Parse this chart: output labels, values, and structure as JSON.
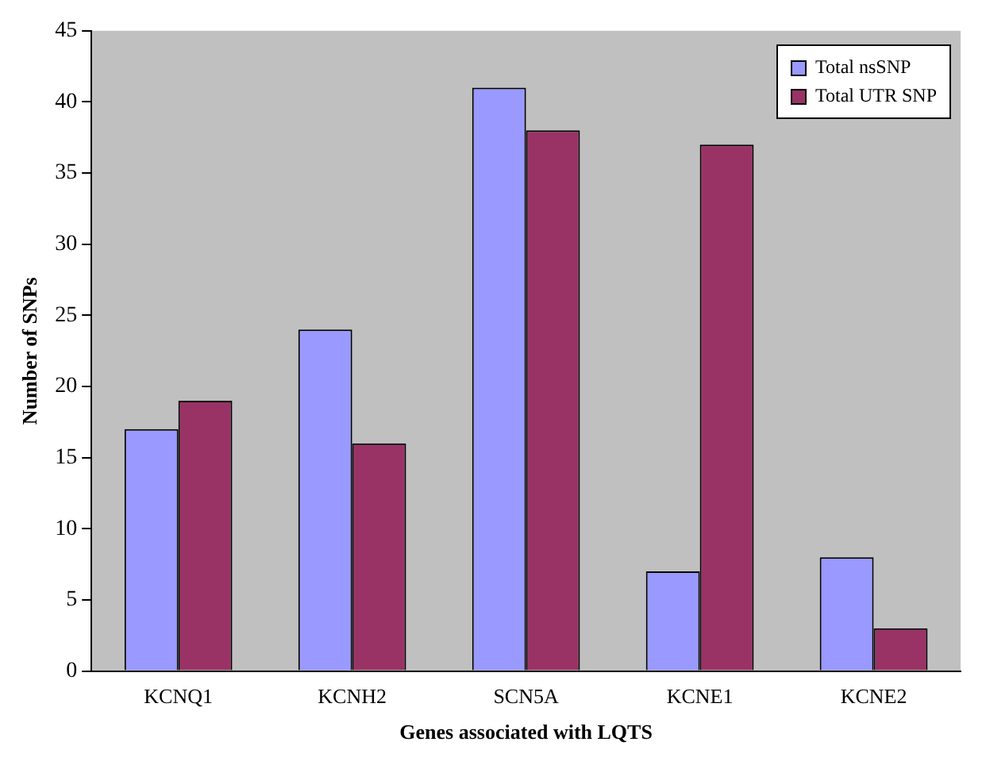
{
  "chart_data": {
    "type": "bar",
    "xlabel": "Genes associated with LQTS",
    "ylabel": "Number of SNPs",
    "categories": [
      "KCNQ1",
      "KCNH2",
      "SCN5A",
      "KCNE1",
      "KCNE2"
    ],
    "series": [
      {
        "name": "Total nsSNP",
        "color": "#9999ff",
        "values": [
          17,
          24,
          41,
          7,
          8
        ]
      },
      {
        "name": "Total UTR SNP",
        "color": "#993366",
        "values": [
          19,
          16,
          38,
          37,
          3
        ]
      }
    ],
    "ylim": [
      0,
      45
    ],
    "yticks": [
      0,
      5,
      10,
      15,
      20,
      25,
      30,
      35,
      40,
      45
    ],
    "grid": false,
    "legend": "top right"
  }
}
